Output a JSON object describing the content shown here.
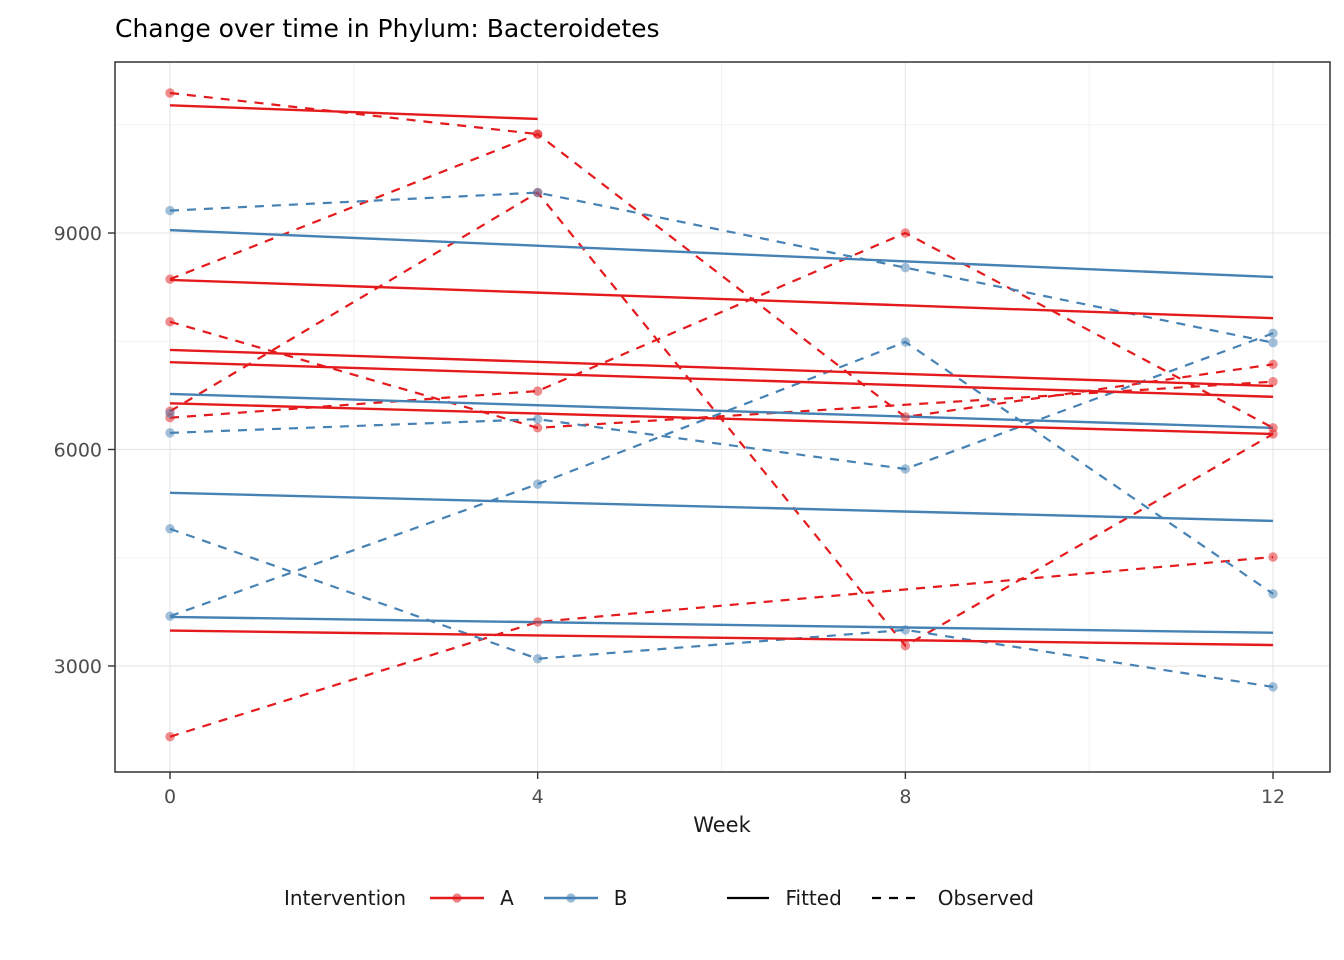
{
  "title": "Change over time in Phylum: Bacteroidetes",
  "axes": {
    "x": {
      "label": "Week",
      "ticks": [
        0,
        4,
        8,
        12
      ],
      "minor": [
        2,
        6,
        10
      ],
      "range": [
        -0.6,
        12.62
      ]
    },
    "y": {
      "ticks": [
        3000,
        6000,
        9000
      ],
      "minor": [
        4500,
        7500,
        10500
      ],
      "range": [
        1530,
        11370
      ]
    }
  },
  "legend": {
    "title": "Intervention",
    "groups": [
      {
        "label": "A",
        "color": "#E41A1C"
      },
      {
        "label": "B",
        "color": "#4682B4"
      }
    ],
    "linetypes": [
      {
        "label": "Fitted",
        "style": "solid"
      },
      {
        "label": "Observed",
        "style": "dashed"
      }
    ]
  },
  "colors": {
    "group_a": "#E41A1C",
    "group_b": "#4682B4",
    "grid_major": "#E5E5E5",
    "grid_minor": "#F2F2F2",
    "panel_border": "#333333",
    "tick_text": "#4D4D4D",
    "legend_line": "#000000",
    "background": "#FFFFFF"
  },
  "chart_data": {
    "type": "line",
    "title": "Change over time in Phylum: Bacteroidetes",
    "xlabel": "Week",
    "ylabel": "",
    "x": [
      0,
      4,
      8,
      12
    ],
    "xlim": [
      -0.6,
      12.62
    ],
    "ylim": [
      1530,
      11370
    ],
    "grid": true,
    "legend_position": "bottom",
    "series": [
      {
        "id": "A1",
        "group": "A",
        "observed": {
          "0": 10940,
          "4": 10370
        },
        "fitted": {
          "weeks": [
            0,
            4
          ],
          "values": [
            10770,
            10580
          ]
        }
      },
      {
        "id": "A2",
        "group": "A",
        "observed": {
          "0": 8360,
          "4": 10370,
          "8": 6450,
          "12": 7180
        },
        "fitted": {
          "weeks": [
            0,
            12
          ],
          "values": [
            8350,
            7820
          ]
        }
      },
      {
        "id": "A3",
        "group": "A",
        "observed": {
          "0": 7770,
          "4": 6300,
          "12": 6940
        },
        "fitted": {
          "weeks": [
            0,
            12
          ],
          "values": [
            7380,
            6880
          ]
        }
      },
      {
        "id": "A4",
        "group": "A",
        "observed": {
          "0": 6440,
          "4": 6810,
          "8": 9000,
          "12": 6300
        },
        "fitted": {
          "weeks": [
            0,
            12
          ],
          "values": [
            7210,
            6730
          ]
        }
      },
      {
        "id": "A5",
        "group": "A",
        "observed": {
          "0": 6530,
          "4": 9560,
          "8": 3280,
          "12": 6215
        },
        "fitted": {
          "weeks": [
            0,
            12
          ],
          "values": [
            6640,
            6215
          ]
        }
      },
      {
        "id": "A6",
        "group": "A",
        "observed": {
          "0": 2020,
          "4": 3610,
          "12": 4510
        },
        "fitted": {
          "weeks": [
            0,
            12
          ],
          "values": [
            3490,
            3290
          ]
        }
      },
      {
        "id": "B1",
        "group": "B",
        "observed": {
          "0": 9310,
          "4": 9560,
          "8": 8520,
          "12": 7480
        },
        "fitted": {
          "weeks": [
            0,
            12
          ],
          "values": [
            9040,
            8390
          ]
        }
      },
      {
        "id": "B2",
        "group": "B",
        "observed": {
          "0": 6230,
          "4": 6420,
          "8": 5730,
          "12": 7610
        },
        "fitted": {
          "weeks": [
            0,
            12
          ],
          "values": [
            6770,
            6300
          ]
        }
      },
      {
        "id": "B3",
        "group": "B",
        "observed": {
          "0": 3690,
          "4": 5520,
          "8": 7490,
          "12": 4000
        },
        "fitted": {
          "weeks": [
            0,
            12
          ],
          "values": [
            5400,
            5010
          ]
        }
      },
      {
        "id": "B4",
        "group": "B",
        "observed": {
          "0": 4900,
          "4": 3100,
          "8": 3500,
          "12": 2710
        },
        "fitted": {
          "weeks": [
            0,
            12
          ],
          "values": [
            3680,
            3460
          ]
        }
      },
      {
        "id": "B5",
        "group": "B",
        "observed": {
          "0": 6500
        },
        "fitted": null
      }
    ]
  }
}
